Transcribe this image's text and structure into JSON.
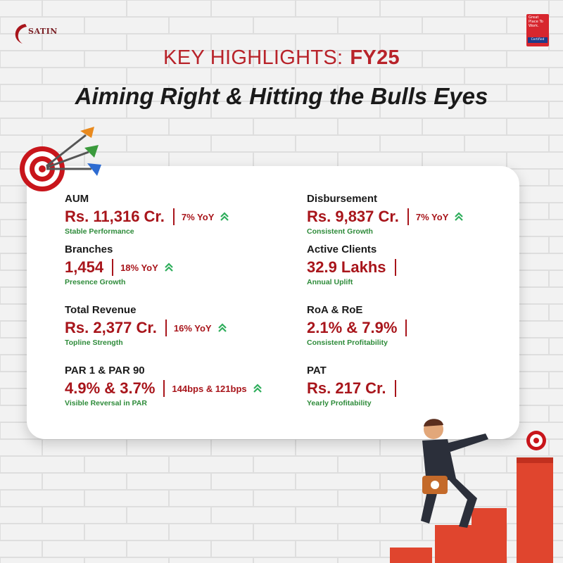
{
  "logo": {
    "text": "SATIN"
  },
  "badge": {
    "lines": "Great Place To Work.",
    "certified": "Certified"
  },
  "header": {
    "title": "KEY HIGHLIGHTS:",
    "year": "FY25",
    "subtitle": "Aiming Right & Hitting the Bulls Eyes"
  },
  "metrics": [
    {
      "label": "AUM",
      "value": "Rs. 11,316 Cr.",
      "yoy": "7% YoY",
      "note": "Stable Performance",
      "arrow": true
    },
    {
      "label": "Disbursement",
      "value": "Rs. 9,837 Cr.",
      "yoy": "7% YoY",
      "note": "Consistent Growth",
      "arrow": true
    },
    {
      "label": "Branches",
      "value": "1,454",
      "yoy": "18% YoY",
      "note": "Presence Growth",
      "arrow": true
    },
    {
      "label": "Active Clients",
      "value": "32.9 Lakhs",
      "yoy": "",
      "note": "Annual Uplift",
      "arrow": false
    },
    {
      "label": "Total Revenue",
      "value": "Rs. 2,377 Cr.",
      "yoy": "16% YoY",
      "note": "Topline Strength",
      "arrow": true
    },
    {
      "label": "RoA & RoE",
      "value": "2.1% & 7.9%",
      "yoy": "",
      "note": "Consistent Profitability",
      "arrow": false
    },
    {
      "label": "PAR 1 & PAR 90",
      "value": "4.9% & 3.7%",
      "yoy": "144bps & 121bps",
      "note": "Visible Reversal in PAR",
      "arrow": true
    },
    {
      "label": "PAT",
      "value": "Rs. 217 Cr.",
      "yoy": "",
      "note": "Yearly Profitability",
      "arrow": false
    }
  ],
  "colors": {
    "accent": "#a8151b",
    "note": "#2e8b3a",
    "title": "#b8232a",
    "arrow": "#2fae5c"
  },
  "icons": [
    "satin-logo-icon",
    "great-place-to-work-badge",
    "dartboard-icon",
    "up-chevron-icon",
    "businessman-illustration",
    "bar-steps-icon"
  ]
}
